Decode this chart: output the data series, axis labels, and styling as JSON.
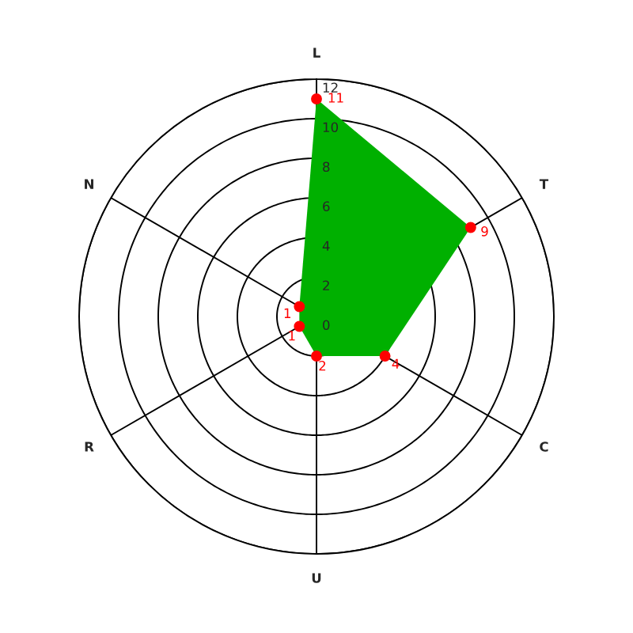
{
  "chart_data": {
    "type": "radar",
    "categories": [
      "L",
      "T",
      "C",
      "U",
      "R",
      "N"
    ],
    "series": [
      {
        "color": "#00b000",
        "values": [
          11,
          9,
          4,
          2,
          1,
          1
        ]
      }
    ],
    "ylim": [
      0,
      12
    ],
    "yticks": [
      0,
      2,
      4,
      6,
      8,
      10,
      12
    ],
    "grid": true,
    "marker": "circle",
    "data_labels": true
  }
}
